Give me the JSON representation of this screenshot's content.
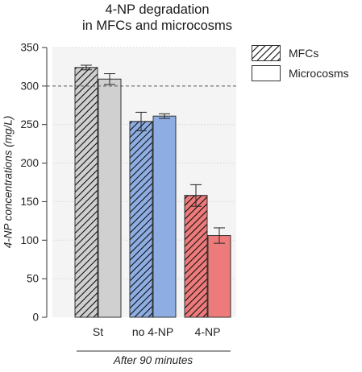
{
  "chart_data": {
    "type": "bar",
    "title_lines": [
      "4-NP degradation",
      "in MFCs and microcosms"
    ],
    "ylabel": "4-NP concentrations (mg/L)",
    "xlabel": "After 90 minutes",
    "categories": [
      "St",
      "no 4-NP",
      "4-NP"
    ],
    "ylim": [
      0,
      350
    ],
    "yticks": [
      0,
      50,
      100,
      150,
      200,
      250,
      300,
      350
    ],
    "reference_line": 300,
    "grid": "horizontal dotted",
    "legend_position": "top-right",
    "series": [
      {
        "name": "MFCs",
        "pattern": "hatched",
        "values": [
          324,
          254,
          158
        ],
        "errors": [
          3,
          12,
          14
        ]
      },
      {
        "name": "Microcosms",
        "pattern": "solid",
        "values": [
          309,
          261,
          106
        ],
        "errors": [
          7,
          3,
          10
        ]
      }
    ],
    "category_colors": [
      "#d0d0d0",
      "#8eaee3",
      "#ee7b7b"
    ]
  }
}
